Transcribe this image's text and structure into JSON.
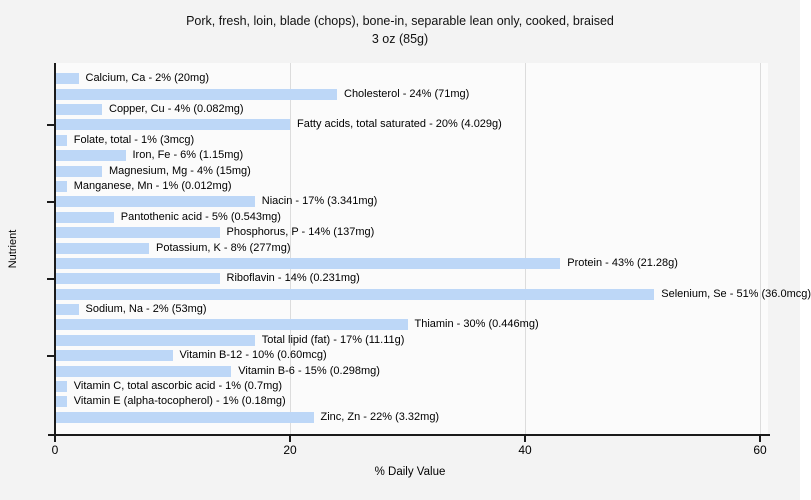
{
  "title": {
    "line1": "Pork, fresh, loin, blade (chops), bone-in, separable lean only, cooked, braised",
    "line2": "3 oz (85g)"
  },
  "chart_data": {
    "type": "bar",
    "orientation": "horizontal",
    "title": "Pork, fresh, loin, blade (chops), bone-in, separable lean only, cooked, braised 3 oz (85g)",
    "xlabel": "% Daily Value",
    "ylabel": "Nutrient",
    "xlim": [
      0,
      60
    ],
    "xticks": [
      0,
      20,
      40,
      60
    ],
    "xtick_labels": [
      "0",
      "20",
      "40",
      "60"
    ],
    "grid": "vertical-only",
    "legend": "none",
    "categories": [
      "Calcium, Ca",
      "Cholesterol",
      "Copper, Cu",
      "Fatty acids, total saturated",
      "Folate, total",
      "Iron, Fe",
      "Magnesium, Mg",
      "Manganese, Mn",
      "Niacin",
      "Pantothenic acid",
      "Phosphorus, P",
      "Potassium, K",
      "Protein",
      "Riboflavin",
      "Selenium, Se",
      "Sodium, Na",
      "Thiamin",
      "Total lipid (fat)",
      "Vitamin B-12",
      "Vitamin B-6",
      "Vitamin C, total ascorbic acid",
      "Vitamin E (alpha-tocopherol)",
      "Zinc, Zn"
    ],
    "values": [
      2,
      24,
      4,
      20,
      1,
      6,
      4,
      1,
      17,
      5,
      14,
      8,
      43,
      14,
      51,
      2,
      30,
      17,
      10,
      15,
      1,
      1,
      22
    ],
    "amounts": [
      "20mg",
      "71mg",
      "0.082mg",
      "4.029g",
      "3mcg",
      "1.15mg",
      "15mg",
      "0.012mg",
      "3.341mg",
      "0.543mg",
      "137mg",
      "277mg",
      "21.28g",
      "0.231mg",
      "36.0mcg",
      "53mg",
      "0.446mg",
      "11.11g",
      "0.60mcg",
      "0.298mg",
      "0.7mg",
      "0.18mg",
      "3.32mg"
    ],
    "bar_labels": [
      "Calcium, Ca - 2% (20mg)",
      "Cholesterol - 24% (71mg)",
      "Copper, Cu - 4% (0.082mg)",
      "Fatty acids, total saturated - 20% (4.029g)",
      "Folate, total - 1% (3mcg)",
      "Iron, Fe - 6% (1.15mg)",
      "Magnesium, Mg - 4% (15mg)",
      "Manganese, Mn - 1% (0.012mg)",
      "Niacin - 17% (3.341mg)",
      "Pantothenic acid - 5% (0.543mg)",
      "Phosphorus, P - 14% (137mg)",
      "Potassium, K - 8% (277mg)",
      "Protein - 43% (21.28g)",
      "Riboflavin - 14% (0.231mg)",
      "Selenium, Se - 51% (36.0mcg)",
      "Sodium, Na - 2% (53mg)",
      "Thiamin - 30% (0.446mg)",
      "Total lipid (fat) - 17% (11.11g)",
      "Vitamin B-12 - 10% (0.60mcg)",
      "Vitamin B-6 - 15% (0.298mg)",
      "Vitamin C, total ascorbic acid - 1% (0.7mg)",
      "Vitamin E (alpha-tocopherol) - 1% (0.18mg)",
      "Zinc, Zn - 22% (3.32mg)"
    ],
    "colors": {
      "bar": "#bdd7f7",
      "plot_background": "#fbfbfb",
      "page_background": "#f3f3f3",
      "gridline": "#dcdcdc",
      "axis": "#1a1a1a",
      "text": "#000000"
    }
  }
}
